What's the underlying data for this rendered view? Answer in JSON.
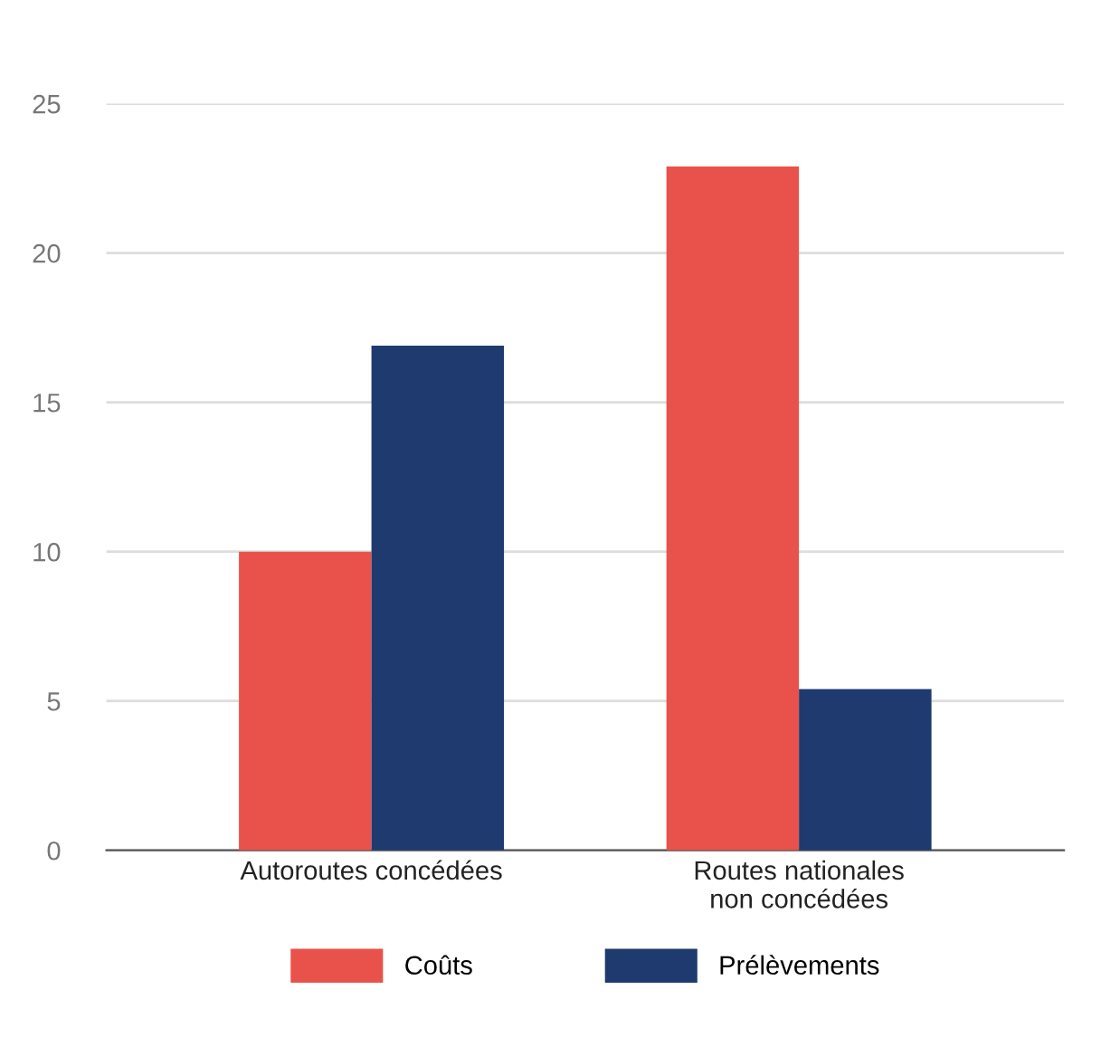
{
  "chart_data": {
    "type": "bar",
    "categories": [
      "Autoroutes concédées",
      "Routes nationales\nnon concédées"
    ],
    "series": [
      {
        "name": "Coûts",
        "color": "#e8524a",
        "values": [
          10,
          22.9
        ]
      },
      {
        "name": "Prélèvements",
        "color": "#1f3a6e",
        "values": [
          16.9,
          5.4
        ]
      }
    ],
    "ylim": [
      0,
      25
    ],
    "yticks": [
      0,
      5,
      10,
      15,
      20,
      25
    ],
    "grid": "y",
    "legend": "bottom"
  }
}
